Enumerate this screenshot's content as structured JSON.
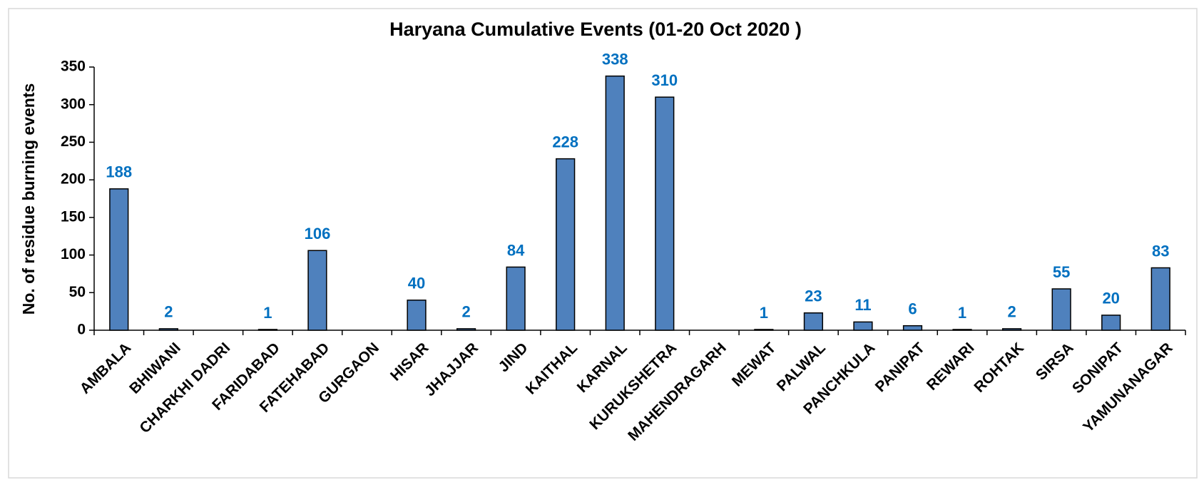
{
  "chart_data": {
    "type": "bar",
    "title": "Haryana Cumulative Events (01-20 Oct 2020 )",
    "y_label": "No. of residue burning events",
    "categories": [
      "AMBALA",
      "BHIWANI",
      "CHARKHI DADRI",
      "FARIDABAD",
      "FATEHABAD",
      "GURGAON",
      "HISAR",
      "JHAJJAR",
      "JIND",
      "KAITHAL",
      "KARNAL",
      "KURUKSHETRA",
      "MAHENDRAGARH",
      "MEWAT",
      "PALWAL",
      "PANCHKULA",
      "PANIPAT",
      "REWARI",
      "ROHTAK",
      "SIRSA",
      "SONIPAT",
      "YAMUNANAGAR"
    ],
    "values": [
      188,
      2,
      null,
      1,
      106,
      null,
      40,
      2,
      84,
      228,
      338,
      310,
      null,
      1,
      23,
      11,
      6,
      1,
      2,
      55,
      20,
      83
    ],
    "color": "#4f81bd",
    "label_color": "#0070c0",
    "ylim": [
      0,
      350
    ],
    "yticks": [
      0,
      50,
      100,
      150,
      200,
      250,
      300,
      350
    ],
    "grid": false
  }
}
